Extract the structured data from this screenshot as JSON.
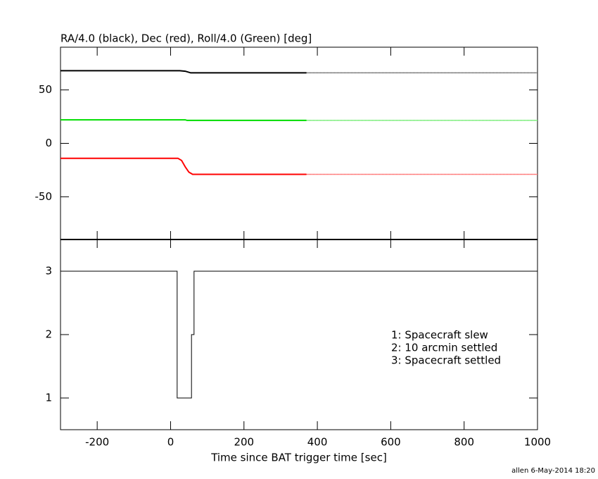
{
  "chart_data": [
    {
      "type": "line",
      "title": "RA/4.0 (black), Dec (red), Roll/4.0 (Green) [deg]",
      "xlim": [
        -300,
        1000
      ],
      "xticks": [
        -200,
        0,
        200,
        400,
        600,
        800,
        1000
      ],
      "xtick_labels": false,
      "ylim": [
        -90,
        90
      ],
      "yticks": [
        -50,
        0,
        50
      ],
      "series": [
        {
          "color": "#000000",
          "x": [
            -300,
            25,
            40,
            55,
            370
          ],
          "values": [
            68,
            68,
            67.5,
            66,
            66
          ]
        },
        {
          "color": "#000000",
          "dotted": true,
          "x": [
            370,
            1000
          ],
          "values": [
            66,
            66
          ]
        },
        {
          "color": "#00dd00",
          "x": [
            -300,
            40,
            45,
            370
          ],
          "values": [
            22,
            22,
            21.5,
            21.5
          ]
        },
        {
          "color": "#00dd00",
          "dotted": true,
          "x": [
            370,
            1000
          ],
          "values": [
            21.5,
            21.5
          ]
        },
        {
          "color": "#ff0000",
          "x": [
            -300,
            20,
            30,
            40,
            50,
            60,
            370
          ],
          "values": [
            -14,
            -14,
            -16,
            -22,
            -27,
            -29,
            -29
          ]
        },
        {
          "color": "#ff0000",
          "dotted": true,
          "x": [
            370,
            1000
          ],
          "values": [
            -29,
            -29
          ]
        }
      ]
    },
    {
      "type": "line",
      "x_label": "Time since BAT trigger time [sec]",
      "xlim": [
        -300,
        1000
      ],
      "xticks": [
        -200,
        0,
        200,
        400,
        600,
        800,
        1000
      ],
      "xtick_labels": true,
      "ylim": [
        0.5,
        3.5
      ],
      "yticks": [
        1,
        2,
        3
      ],
      "series": [
        {
          "color": "#000000",
          "thin": true,
          "x": [
            -300,
            18,
            18,
            57,
            57,
            64,
            64,
            1000
          ],
          "values": [
            3,
            3,
            1,
            1,
            2,
            2,
            3,
            3
          ]
        }
      ],
      "annotations": [
        "1: Spacecraft slew",
        "2: 10 arcmin settled",
        "3: Spacecraft settled"
      ]
    }
  ],
  "footer": "allen  6-May-2014 18:20"
}
